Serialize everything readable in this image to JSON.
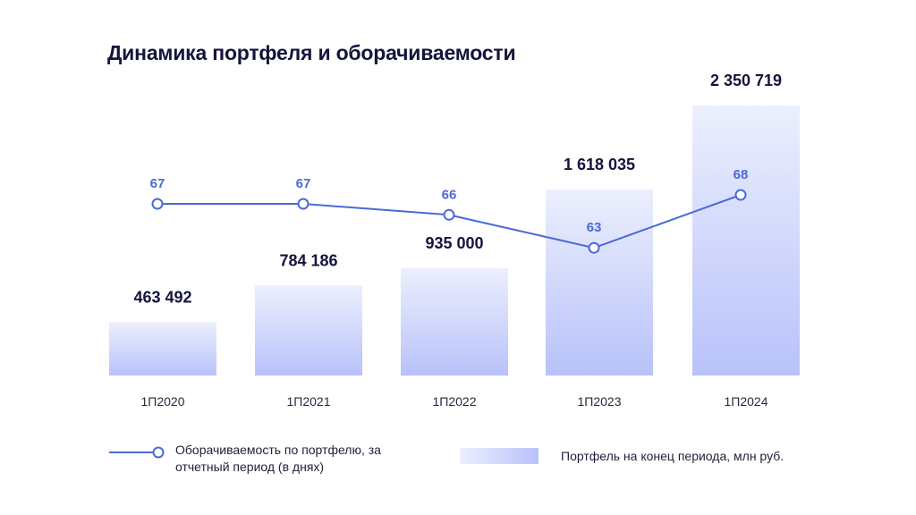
{
  "title": "Динамика портфеля и оборачиваемости",
  "colors": {
    "line": "#4a6ad6",
    "bar_top": "#eceffd",
    "bar_bottom": "#b8c2fa",
    "bar_label": "#14143c",
    "axis_label": "#2a2a40"
  },
  "legend": {
    "line_label": "Оборачиваемость по портфелю, за отчетный период (в днях)",
    "bar_label": "Портфель на конец периода, млн руб."
  },
  "chart_data": {
    "type": "bar",
    "categories": [
      "1П2020",
      "1П2021",
      "1П2022",
      "1П2023",
      "1П2024"
    ],
    "series": [
      {
        "name": "Портфель на конец периода, млн руб.",
        "type": "bar",
        "values": [
          463492,
          784186,
          935000,
          1618035,
          2350719
        ],
        "labels": [
          "463 492",
          "784 186",
          "935 000",
          "1 618 035",
          "2 350 719"
        ]
      },
      {
        "name": "Оборачиваемость по портфелю, за отчетный период (в днях)",
        "type": "line",
        "values": [
          67,
          67,
          66,
          63,
          68
        ],
        "labels": [
          "67",
          "67",
          "66",
          "63",
          "68"
        ]
      }
    ],
    "legend_position": "bottom",
    "grid": false
  }
}
